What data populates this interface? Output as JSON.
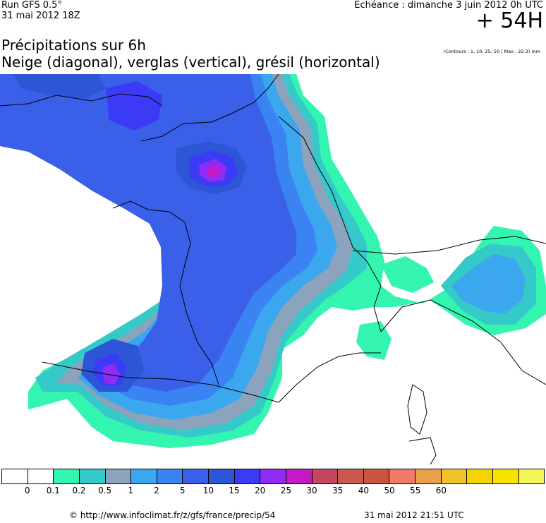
{
  "header": {
    "run_label": "Run GFS 0.5°",
    "run_date": "31 mai 2012 18Z",
    "echeance": "Echéance : dimanche 3 juin 2012 0h UTC",
    "horizon": "+ 54H"
  },
  "title": {
    "line1": "Précipitations sur 6h",
    "line2": "Neige (diagonal), verglas (vertical), grésil (horizontal)",
    "contours_note": "(Contours : 1, 10, 25, 50 | Max : 22.3) mm"
  },
  "legend": {
    "colors": [
      "#ffffff",
      "#ffffff",
      "#33f5b0",
      "#35c9c9",
      "#8ca3bd",
      "#3aa7ee",
      "#3b82f2",
      "#3a5fe8",
      "#2d56d6",
      "#3b3bf5",
      "#8f2bf2",
      "#c31ac6",
      "#c7465f",
      "#c95a4d",
      "#c9553c",
      "#f27a6a",
      "#e8a14a",
      "#f0c22c",
      "#f5d500",
      "#f7e300",
      "#f5f55a"
    ],
    "tick_labels": [
      "0",
      "0.1",
      "0.2",
      "0.5",
      "1",
      "2",
      "5",
      "10",
      "15",
      "20",
      "25",
      "30",
      "35",
      "40",
      "50",
      "55",
      "60"
    ]
  },
  "map": {
    "region": "France",
    "palette": {
      "c01": "#33f5b0",
      "c02": "#35c9c9",
      "c05": "#8ca3bd",
      "c1": "#3aa7ee",
      "c2": "#3b82f2",
      "c5": "#3a5fe8",
      "c10": "#2d56d6",
      "c15": "#3b3bf5",
      "c20": "#8f2bf2",
      "c25": "#c31ac6"
    }
  },
  "footer": {
    "url": "© http://www.infoclimat.fr/z/gfs/france/precip/54",
    "timestamp": "31 mai 2012 21:51 UTC"
  }
}
